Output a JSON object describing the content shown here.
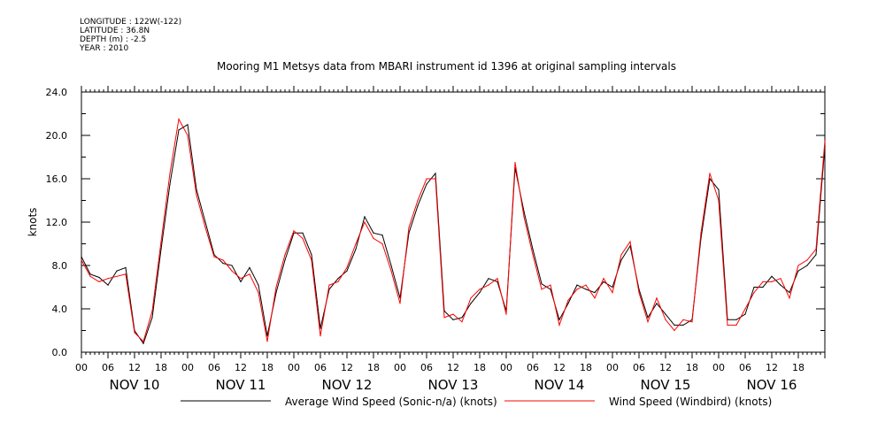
{
  "meta": {
    "longitude": "LONGITUDE : 122W(-122)",
    "latitude": "LATITUDE : 36.8N",
    "depth": "DEPTH (m) : -2.5",
    "year": "YEAR : 2010"
  },
  "chart_data": {
    "type": "line",
    "title": "Mooring M1 Metsys data from MBARI instrument id 1396 at original sampling intervals",
    "ylabel": "knots",
    "xlabel": "",
    "ylim": [
      0,
      24
    ],
    "y_ticks": [
      "0.0",
      "4.0",
      "8.0",
      "12.0",
      "16.0",
      "20.0",
      "24.0"
    ],
    "x_hour_ticks": [
      "00",
      "06",
      "12",
      "18",
      "00",
      "06",
      "12",
      "18",
      "00",
      "06",
      "12",
      "18",
      "00",
      "06",
      "12",
      "18",
      "00",
      "06",
      "12",
      "18",
      "00",
      "06",
      "12",
      "18",
      "00",
      "06",
      "12",
      "18"
    ],
    "x_day_labels": [
      "NOV 10",
      "NOV 11",
      "NOV 12",
      "NOV 13",
      "NOV 14",
      "NOV 15",
      "NOV 16"
    ],
    "x_range_hours": [
      0,
      168
    ],
    "x_hours": [
      0,
      2,
      4,
      6,
      8,
      10,
      12,
      14,
      16,
      18,
      20,
      22,
      24,
      26,
      28,
      30,
      32,
      34,
      36,
      38,
      40,
      42,
      44,
      46,
      48,
      50,
      52,
      54,
      56,
      58,
      60,
      62,
      64,
      66,
      68,
      70,
      72,
      74,
      76,
      78,
      80,
      82,
      84,
      86,
      88,
      90,
      92,
      94,
      96,
      98,
      100,
      102,
      104,
      106,
      108,
      110,
      112,
      114,
      116,
      118,
      120,
      122,
      124,
      126,
      128,
      130,
      132,
      134,
      136,
      138,
      140,
      142,
      144,
      146,
      148,
      150,
      152,
      154,
      156,
      158,
      160,
      162,
      164,
      166,
      168
    ],
    "series": [
      {
        "name": "Average Wind Speed (Sonic-n/a) (knots)",
        "color": "#000000",
        "values": [
          8.8,
          7.2,
          6.9,
          6.2,
          7.5,
          7.8,
          2.0,
          0.8,
          3.2,
          9.5,
          15.5,
          20.5,
          21.0,
          15.0,
          12.0,
          9.0,
          8.2,
          8.0,
          6.5,
          7.8,
          6.2,
          1.5,
          5.5,
          8.5,
          11.0,
          11.0,
          9.0,
          2.2,
          5.8,
          6.8,
          7.5,
          9.5,
          12.5,
          11.0,
          10.8,
          8.0,
          5.0,
          11.0,
          13.5,
          15.5,
          16.5,
          3.8,
          3.0,
          3.2,
          4.5,
          5.5,
          6.8,
          6.5,
          3.8,
          17.0,
          13.0,
          9.5,
          6.3,
          5.8,
          3.0,
          4.5,
          6.2,
          5.8,
          5.5,
          6.5,
          6.0,
          8.5,
          9.8,
          5.8,
          3.2,
          4.5,
          3.5,
          2.5,
          2.5,
          3.0,
          10.5,
          16.0,
          15.0,
          3.0,
          3.0,
          3.5,
          6.0,
          6.0,
          7.0,
          6.2,
          5.5,
          7.5,
          8.0,
          9.0,
          19.0
        ]
      },
      {
        "name": "Wind Speed (Windbird) (knots)",
        "color": "#ff0000",
        "values": [
          8.5,
          7.0,
          6.5,
          6.8,
          7.0,
          7.2,
          1.8,
          1.0,
          3.8,
          10.2,
          16.5,
          21.5,
          20.0,
          14.5,
          11.5,
          8.8,
          8.5,
          7.5,
          6.8,
          7.2,
          5.5,
          1.0,
          6.0,
          9.0,
          11.2,
          10.5,
          8.5,
          1.5,
          6.2,
          6.5,
          7.8,
          10.0,
          12.0,
          10.5,
          10.0,
          7.5,
          4.5,
          11.5,
          14.0,
          16.0,
          16.0,
          3.2,
          3.5,
          2.8,
          5.0,
          5.8,
          6.2,
          6.8,
          3.5,
          17.5,
          12.5,
          9.0,
          5.8,
          6.2,
          2.5,
          4.8,
          5.8,
          6.2,
          5.0,
          6.8,
          5.5,
          9.0,
          10.2,
          5.5,
          2.8,
          5.0,
          3.0,
          2.0,
          3.0,
          2.8,
          11.0,
          16.5,
          14.0,
          2.5,
          2.5,
          4.0,
          5.5,
          6.5,
          6.5,
          6.8,
          5.0,
          8.0,
          8.5,
          9.5,
          19.5
        ]
      }
    ],
    "legend": "bottom",
    "grid": false
  }
}
